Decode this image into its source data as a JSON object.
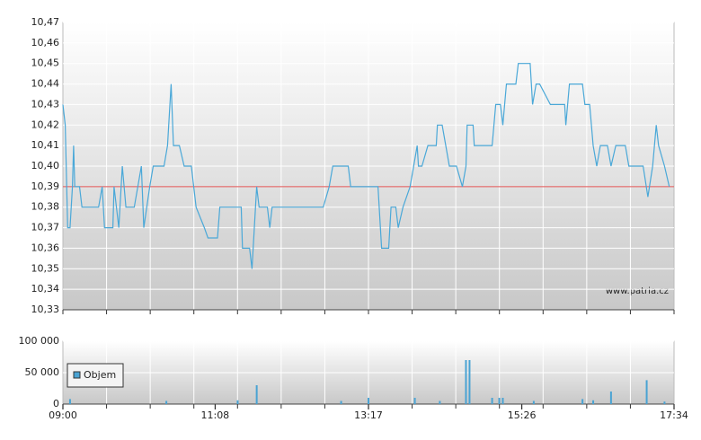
{
  "chart_data": [
    {
      "type": "line",
      "color": "#4aa8d8",
      "xlim": [
        "09:00",
        "17:34"
      ],
      "ylim": [
        10.33,
        10.47
      ],
      "yticks": [
        {
          "value": 10.33,
          "label": "10,33"
        },
        {
          "value": 10.34,
          "label": "10,34"
        },
        {
          "value": 10.35,
          "label": "10,35"
        },
        {
          "value": 10.36,
          "label": "10,36"
        },
        {
          "value": 10.37,
          "label": "10,37"
        },
        {
          "value": 10.38,
          "label": "10,38"
        },
        {
          "value": 10.39,
          "label": "10,39"
        },
        {
          "value": 10.4,
          "label": "10,40"
        },
        {
          "value": 10.41,
          "label": "10,41"
        },
        {
          "value": 10.42,
          "label": "10,42"
        },
        {
          "value": 10.43,
          "label": "10,43"
        },
        {
          "value": 10.44,
          "label": "10,44"
        },
        {
          "value": 10.45,
          "label": "10,45"
        },
        {
          "value": 10.46,
          "label": "10,46"
        },
        {
          "value": 10.47,
          "label": "10,47"
        }
      ],
      "grid": true,
      "reference_line": {
        "value": 10.39,
        "color": "#e05050"
      },
      "watermark": "www.patria.cz",
      "x": [
        "09:00",
        "09:02",
        "09:04",
        "09:06",
        "09:08",
        "09:09",
        "09:10",
        "09:14",
        "09:16",
        "09:30",
        "09:33",
        "09:35",
        "09:42",
        "09:43",
        "09:47",
        "09:50",
        "09:53",
        "10:00",
        "10:06",
        "10:08",
        "10:13",
        "10:16",
        "10:25",
        "10:28",
        "10:31",
        "10:33",
        "10:38",
        "10:42",
        "10:48",
        "10:52",
        "10:59",
        "11:02",
        "11:10",
        "11:12",
        "11:30",
        "11:31",
        "11:37",
        "11:39",
        "11:43",
        "11:45",
        "11:52",
        "11:54",
        "11:56",
        "12:39",
        "12:44",
        "12:47",
        "13:00",
        "13:02",
        "13:25",
        "13:28",
        "13:34",
        "13:36",
        "13:40",
        "13:42",
        "13:46",
        "13:52",
        "13:55",
        "13:58",
        "13:59",
        "14:02",
        "14:07",
        "14:14",
        "14:15",
        "14:19",
        "14:22",
        "14:25",
        "14:31",
        "14:36",
        "14:39",
        "14:40",
        "14:45",
        "14:46",
        "15:01",
        "15:04",
        "15:08",
        "15:10",
        "15:13",
        "15:21",
        "15:23",
        "15:33",
        "15:35",
        "15:38",
        "15:41",
        "15:50",
        "16:02",
        "16:03",
        "16:06",
        "16:17",
        "16:19",
        "16:23",
        "16:26",
        "16:29",
        "16:32",
        "16:38",
        "16:41",
        "16:45",
        "16:53",
        "16:56",
        "17:08",
        "17:12",
        "17:16",
        "17:19",
        "17:21",
        "17:26",
        "17:30"
      ],
      "values": [
        10.43,
        10.42,
        10.37,
        10.37,
        10.39,
        10.41,
        10.39,
        10.39,
        10.38,
        10.38,
        10.39,
        10.37,
        10.37,
        10.39,
        10.37,
        10.4,
        10.38,
        10.38,
        10.4,
        10.37,
        10.39,
        10.4,
        10.4,
        10.41,
        10.44,
        10.41,
        10.41,
        10.4,
        10.4,
        10.38,
        10.37,
        10.365,
        10.365,
        10.38,
        10.38,
        10.36,
        10.36,
        10.35,
        10.39,
        10.38,
        10.38,
        10.37,
        10.38,
        10.38,
        10.39,
        10.4,
        10.4,
        10.39,
        10.39,
        10.36,
        10.36,
        10.38,
        10.38,
        10.37,
        10.38,
        10.39,
        10.4,
        10.41,
        10.4,
        10.4,
        10.41,
        10.41,
        10.42,
        10.42,
        10.41,
        10.4,
        10.4,
        10.39,
        10.4,
        10.42,
        10.42,
        10.41,
        10.41,
        10.43,
        10.43,
        10.42,
        10.44,
        10.44,
        10.45,
        10.45,
        10.43,
        10.44,
        10.44,
        10.43,
        10.43,
        10.42,
        10.44,
        10.44,
        10.43,
        10.43,
        10.41,
        10.4,
        10.41,
        10.41,
        10.4,
        10.41,
        10.41,
        10.4,
        10.4,
        10.385,
        10.4,
        10.42,
        10.41,
        10.4,
        10.39
      ]
    },
    {
      "type": "bar",
      "xlim": [
        "09:00",
        "17:34"
      ],
      "xticks": [
        "09:00",
        "11:08",
        "13:17",
        "15:26",
        "17:34"
      ],
      "ylim": [
        0,
        100000
      ],
      "yticks": [
        {
          "value": 0,
          "label": "0"
        },
        {
          "value": 50000,
          "label": "50 000"
        },
        {
          "value": 100000,
          "label": "100 000"
        }
      ],
      "grid": true,
      "legend": "upper left",
      "x": [
        "09:06",
        "10:27",
        "11:27",
        "11:43",
        "12:54",
        "13:17",
        "13:56",
        "14:17",
        "14:39",
        "14:42",
        "15:01",
        "15:07",
        "15:10",
        "15:36",
        "16:17",
        "16:26",
        "16:41",
        "17:11",
        "17:26"
      ],
      "series": [
        {
          "name": "Objem",
          "color": "#4aa3d3",
          "values": [
            8000,
            5000,
            6000,
            30000,
            5000,
            10000,
            10000,
            5000,
            70000,
            70000,
            10000,
            10000,
            10000,
            5000,
            8000,
            6000,
            20000,
            38000,
            4000
          ]
        }
      ]
    }
  ]
}
